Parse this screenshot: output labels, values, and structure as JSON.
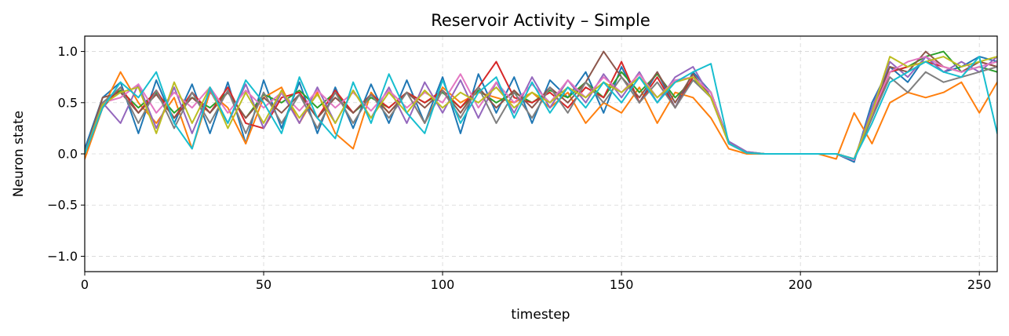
{
  "chart_data": {
    "type": "line",
    "title": "Reservoir Activity – Simple",
    "xlabel": "timestep",
    "ylabel": "Neuron state",
    "xlim": [
      0,
      255
    ],
    "ylim": [
      -1.15,
      1.15
    ],
    "xticks": [
      0,
      50,
      100,
      150,
      200,
      250
    ],
    "xtick_labels": [
      "0",
      "50",
      "100",
      "150",
      "200",
      "250"
    ],
    "yticks": [
      -1.0,
      -0.5,
      0.0,
      0.5,
      1.0
    ],
    "ytick_labels": [
      "−1.0",
      "−0.5",
      "0.0",
      "0.5",
      "1.0"
    ],
    "grid": true,
    "legend": "none",
    "colors": [
      "#1f77b4",
      "#ff7f0e",
      "#2ca02c",
      "#d62728",
      "#9467bd",
      "#8c564b",
      "#e377c2",
      "#7f7f7f",
      "#bcbd22",
      "#17becf"
    ],
    "series": [
      {
        "x": [
          0,
          5,
          10,
          15,
          20,
          25,
          30,
          35,
          40,
          45,
          50,
          55,
          60,
          65,
          70,
          75,
          80,
          85,
          90,
          95,
          100,
          105,
          110,
          115,
          120,
          125,
          130,
          135,
          140,
          145,
          150,
          155,
          160,
          165,
          170,
          175,
          180,
          185,
          190,
          195,
          200,
          205,
          210,
          215,
          220,
          225,
          230,
          235,
          240,
          245,
          250,
          255
        ],
        "y": [
          0.05,
          0.55,
          0.7,
          0.2,
          0.72,
          0.3,
          0.68,
          0.2,
          0.7,
          0.1,
          0.72,
          0.25,
          0.7,
          0.2,
          0.65,
          0.25,
          0.68,
          0.3,
          0.72,
          0.3,
          0.75,
          0.2,
          0.78,
          0.4,
          0.75,
          0.3,
          0.72,
          0.55,
          0.8,
          0.4,
          0.85,
          0.5,
          0.8,
          0.45,
          0.8,
          0.6,
          0.12,
          0.02,
          0.0,
          0.0,
          0.0,
          0.0,
          0.0,
          -0.08,
          0.5,
          0.85,
          0.7,
          0.95,
          0.8,
          0.85,
          0.95,
          0.9
        ]
      },
      {
        "x": [
          0,
          5,
          10,
          15,
          20,
          25,
          30,
          35,
          40,
          45,
          50,
          55,
          60,
          65,
          70,
          75,
          80,
          85,
          90,
          95,
          100,
          105,
          110,
          115,
          120,
          125,
          130,
          135,
          140,
          145,
          150,
          155,
          160,
          165,
          170,
          175,
          180,
          185,
          190,
          195,
          200,
          205,
          210,
          215,
          220,
          225,
          230,
          235,
          240,
          245,
          250,
          255
        ],
        "y": [
          -0.05,
          0.45,
          0.8,
          0.5,
          0.3,
          0.55,
          0.05,
          0.6,
          0.45,
          0.1,
          0.55,
          0.65,
          0.3,
          0.6,
          0.2,
          0.05,
          0.6,
          0.4,
          0.6,
          0.3,
          0.65,
          0.5,
          0.6,
          0.55,
          0.5,
          0.6,
          0.45,
          0.6,
          0.3,
          0.5,
          0.4,
          0.65,
          0.3,
          0.6,
          0.55,
          0.35,
          0.05,
          0.0,
          0.0,
          0.0,
          0.0,
          0.0,
          -0.05,
          0.4,
          0.1,
          0.5,
          0.6,
          0.55,
          0.6,
          0.7,
          0.4,
          0.7
        ]
      },
      {
        "x": [
          0,
          5,
          10,
          15,
          20,
          25,
          30,
          35,
          40,
          45,
          50,
          55,
          60,
          65,
          70,
          75,
          80,
          85,
          90,
          95,
          100,
          105,
          110,
          115,
          120,
          125,
          130,
          135,
          140,
          145,
          150,
          155,
          160,
          165,
          170,
          175,
          180,
          185,
          190,
          195,
          200,
          205,
          210,
          215,
          220,
          225,
          230,
          235,
          240,
          245,
          250,
          255
        ],
        "y": [
          0.0,
          0.5,
          0.62,
          0.45,
          0.6,
          0.4,
          0.55,
          0.45,
          0.6,
          0.35,
          0.58,
          0.5,
          0.62,
          0.45,
          0.6,
          0.4,
          0.55,
          0.45,
          0.6,
          0.5,
          0.6,
          0.45,
          0.62,
          0.5,
          0.6,
          0.5,
          0.62,
          0.55,
          0.7,
          0.55,
          0.8,
          0.6,
          0.78,
          0.55,
          0.72,
          0.6,
          0.1,
          0.01,
          0.0,
          0.0,
          0.0,
          0.0,
          0.0,
          -0.05,
          0.4,
          0.8,
          0.85,
          0.95,
          1.0,
          0.8,
          0.85,
          0.8
        ]
      },
      {
        "x": [
          0,
          5,
          10,
          15,
          20,
          25,
          30,
          35,
          40,
          45,
          50,
          55,
          60,
          65,
          70,
          75,
          80,
          85,
          90,
          95,
          100,
          105,
          110,
          115,
          120,
          125,
          130,
          135,
          140,
          145,
          150,
          155,
          160,
          165,
          170,
          175,
          180,
          185,
          190,
          195,
          200,
          205,
          210,
          215,
          220,
          225,
          230,
          235,
          240,
          245,
          250,
          255
        ],
        "y": [
          0.0,
          0.45,
          0.65,
          0.4,
          0.62,
          0.35,
          0.6,
          0.4,
          0.65,
          0.3,
          0.25,
          0.55,
          0.6,
          0.35,
          0.62,
          0.4,
          0.58,
          0.45,
          0.6,
          0.5,
          0.62,
          0.45,
          0.65,
          0.9,
          0.55,
          0.5,
          0.6,
          0.45,
          0.65,
          0.55,
          0.9,
          0.5,
          0.75,
          0.45,
          0.75,
          0.6,
          0.1,
          0.01,
          0.0,
          0.0,
          0.0,
          0.0,
          0.0,
          -0.05,
          0.35,
          0.8,
          0.85,
          0.9,
          0.85,
          0.8,
          0.9,
          0.85
        ]
      },
      {
        "x": [
          0,
          5,
          10,
          15,
          20,
          25,
          30,
          35,
          40,
          45,
          50,
          55,
          60,
          65,
          70,
          75,
          80,
          85,
          90,
          95,
          100,
          105,
          110,
          115,
          120,
          125,
          130,
          135,
          140,
          145,
          150,
          155,
          160,
          165,
          170,
          175,
          180,
          185,
          190,
          195,
          200,
          205,
          210,
          215,
          220,
          225,
          230,
          235,
          240,
          245,
          250,
          255
        ],
        "y": [
          0.0,
          0.5,
          0.3,
          0.68,
          0.25,
          0.65,
          0.2,
          0.62,
          0.3,
          0.68,
          0.25,
          0.6,
          0.3,
          0.65,
          0.3,
          0.62,
          0.35,
          0.65,
          0.3,
          0.7,
          0.4,
          0.72,
          0.35,
          0.7,
          0.4,
          0.75,
          0.45,
          0.72,
          0.5,
          0.78,
          0.55,
          0.8,
          0.5,
          0.75,
          0.85,
          0.55,
          0.12,
          0.02,
          0.0,
          0.0,
          0.0,
          0.0,
          0.0,
          -0.06,
          0.45,
          0.9,
          0.75,
          0.95,
          0.8,
          0.9,
          0.8,
          0.95
        ]
      },
      {
        "x": [
          0,
          5,
          10,
          15,
          20,
          25,
          30,
          35,
          40,
          45,
          50,
          55,
          60,
          65,
          70,
          75,
          80,
          85,
          90,
          95,
          100,
          105,
          110,
          115,
          120,
          125,
          130,
          135,
          140,
          145,
          150,
          155,
          160,
          165,
          170,
          175,
          180,
          185,
          190,
          195,
          200,
          205,
          210,
          215,
          220,
          225,
          230,
          235,
          240,
          245,
          250,
          255
        ],
        "y": [
          0.0,
          0.55,
          0.6,
          0.4,
          0.58,
          0.35,
          0.55,
          0.4,
          0.6,
          0.35,
          0.55,
          0.4,
          0.58,
          0.35,
          0.55,
          0.4,
          0.58,
          0.4,
          0.6,
          0.45,
          0.62,
          0.4,
          0.65,
          0.45,
          0.62,
          0.45,
          0.65,
          0.5,
          0.7,
          1.0,
          0.75,
          0.55,
          0.8,
          0.5,
          0.78,
          0.55,
          0.1,
          0.01,
          0.0,
          0.0,
          0.0,
          0.0,
          0.0,
          -0.05,
          0.4,
          0.85,
          0.8,
          1.0,
          0.85,
          0.8,
          0.9,
          0.85
        ]
      },
      {
        "x": [
          0,
          5,
          10,
          15,
          20,
          25,
          30,
          35,
          40,
          45,
          50,
          55,
          60,
          65,
          70,
          75,
          80,
          85,
          90,
          95,
          100,
          105,
          110,
          115,
          120,
          125,
          130,
          135,
          140,
          145,
          150,
          155,
          160,
          165,
          170,
          175,
          180,
          185,
          190,
          195,
          200,
          205,
          210,
          215,
          220,
          225,
          230,
          235,
          240,
          245,
          250,
          255
        ],
        "y": [
          0.0,
          0.5,
          0.55,
          0.68,
          0.4,
          0.6,
          0.45,
          0.65,
          0.4,
          0.62,
          0.45,
          0.6,
          0.42,
          0.62,
          0.45,
          0.6,
          0.42,
          0.62,
          0.45,
          0.6,
          0.5,
          0.78,
          0.45,
          0.7,
          0.5,
          0.68,
          0.5,
          0.72,
          0.55,
          0.75,
          0.6,
          0.78,
          0.55,
          0.72,
          0.75,
          0.6,
          0.1,
          0.01,
          0.0,
          0.0,
          0.0,
          0.0,
          0.0,
          -0.06,
          0.4,
          0.8,
          0.9,
          0.95,
          0.85,
          0.8,
          0.85,
          0.9
        ]
      },
      {
        "x": [
          0,
          5,
          10,
          15,
          20,
          25,
          30,
          35,
          40,
          45,
          50,
          55,
          60,
          65,
          70,
          75,
          80,
          85,
          90,
          95,
          100,
          105,
          110,
          115,
          120,
          125,
          130,
          135,
          140,
          145,
          150,
          155,
          160,
          165,
          170,
          175,
          180,
          185,
          190,
          195,
          200,
          205,
          210,
          215,
          220,
          225,
          230,
          235,
          240,
          245,
          250,
          255
        ],
        "y": [
          0.0,
          0.5,
          0.65,
          0.3,
          0.62,
          0.25,
          0.6,
          0.3,
          0.62,
          0.2,
          0.6,
          0.3,
          0.58,
          0.25,
          0.6,
          0.3,
          0.58,
          0.35,
          0.6,
          0.3,
          0.62,
          0.35,
          0.65,
          0.3,
          0.6,
          0.35,
          0.65,
          0.4,
          0.7,
          0.5,
          0.75,
          0.5,
          0.7,
          0.45,
          0.72,
          0.55,
          0.1,
          0.01,
          0.0,
          0.0,
          0.0,
          0.0,
          0.0,
          -0.05,
          0.35,
          0.75,
          0.6,
          0.8,
          0.7,
          0.75,
          0.8,
          0.85
        ]
      },
      {
        "x": [
          0,
          5,
          10,
          15,
          20,
          25,
          30,
          35,
          40,
          45,
          50,
          55,
          60,
          65,
          70,
          75,
          80,
          85,
          90,
          95,
          100,
          105,
          110,
          115,
          120,
          125,
          130,
          135,
          140,
          145,
          150,
          155,
          160,
          165,
          170,
          175,
          180,
          185,
          190,
          195,
          200,
          205,
          210,
          215,
          220,
          225,
          230,
          235,
          240,
          245,
          250,
          255
        ],
        "y": [
          0.0,
          0.48,
          0.6,
          0.65,
          0.2,
          0.7,
          0.3,
          0.65,
          0.25,
          0.6,
          0.3,
          0.62,
          0.35,
          0.58,
          0.3,
          0.62,
          0.35,
          0.6,
          0.4,
          0.62,
          0.45,
          0.6,
          0.5,
          0.65,
          0.45,
          0.6,
          0.5,
          0.65,
          0.55,
          0.7,
          0.6,
          0.75,
          0.55,
          0.7,
          0.75,
          0.55,
          0.1,
          0.01,
          0.0,
          0.0,
          0.0,
          0.0,
          0.0,
          -0.05,
          0.4,
          0.95,
          0.85,
          0.9,
          0.95,
          0.85,
          0.9,
          0.95
        ]
      },
      {
        "x": [
          0,
          5,
          10,
          15,
          20,
          25,
          30,
          35,
          40,
          45,
          50,
          55,
          60,
          65,
          70,
          75,
          80,
          85,
          90,
          95,
          100,
          105,
          110,
          115,
          120,
          125,
          130,
          135,
          140,
          145,
          150,
          155,
          160,
          165,
          170,
          175,
          180,
          185,
          190,
          195,
          200,
          205,
          210,
          215,
          220,
          225,
          230,
          235,
          240,
          245,
          250,
          255
        ],
        "y": [
          0.0,
          0.45,
          0.7,
          0.55,
          0.8,
          0.3,
          0.05,
          0.65,
          0.3,
          0.72,
          0.5,
          0.2,
          0.75,
          0.35,
          0.15,
          0.7,
          0.3,
          0.78,
          0.4,
          0.2,
          0.72,
          0.3,
          0.6,
          0.75,
          0.35,
          0.7,
          0.4,
          0.65,
          0.45,
          0.7,
          0.5,
          0.75,
          0.5,
          0.7,
          0.8,
          0.88,
          0.1,
          0.01,
          0.0,
          0.0,
          0.0,
          0.0,
          0.0,
          -0.05,
          0.3,
          0.7,
          0.8,
          0.9,
          0.8,
          0.75,
          0.95,
          0.2
        ]
      }
    ]
  }
}
